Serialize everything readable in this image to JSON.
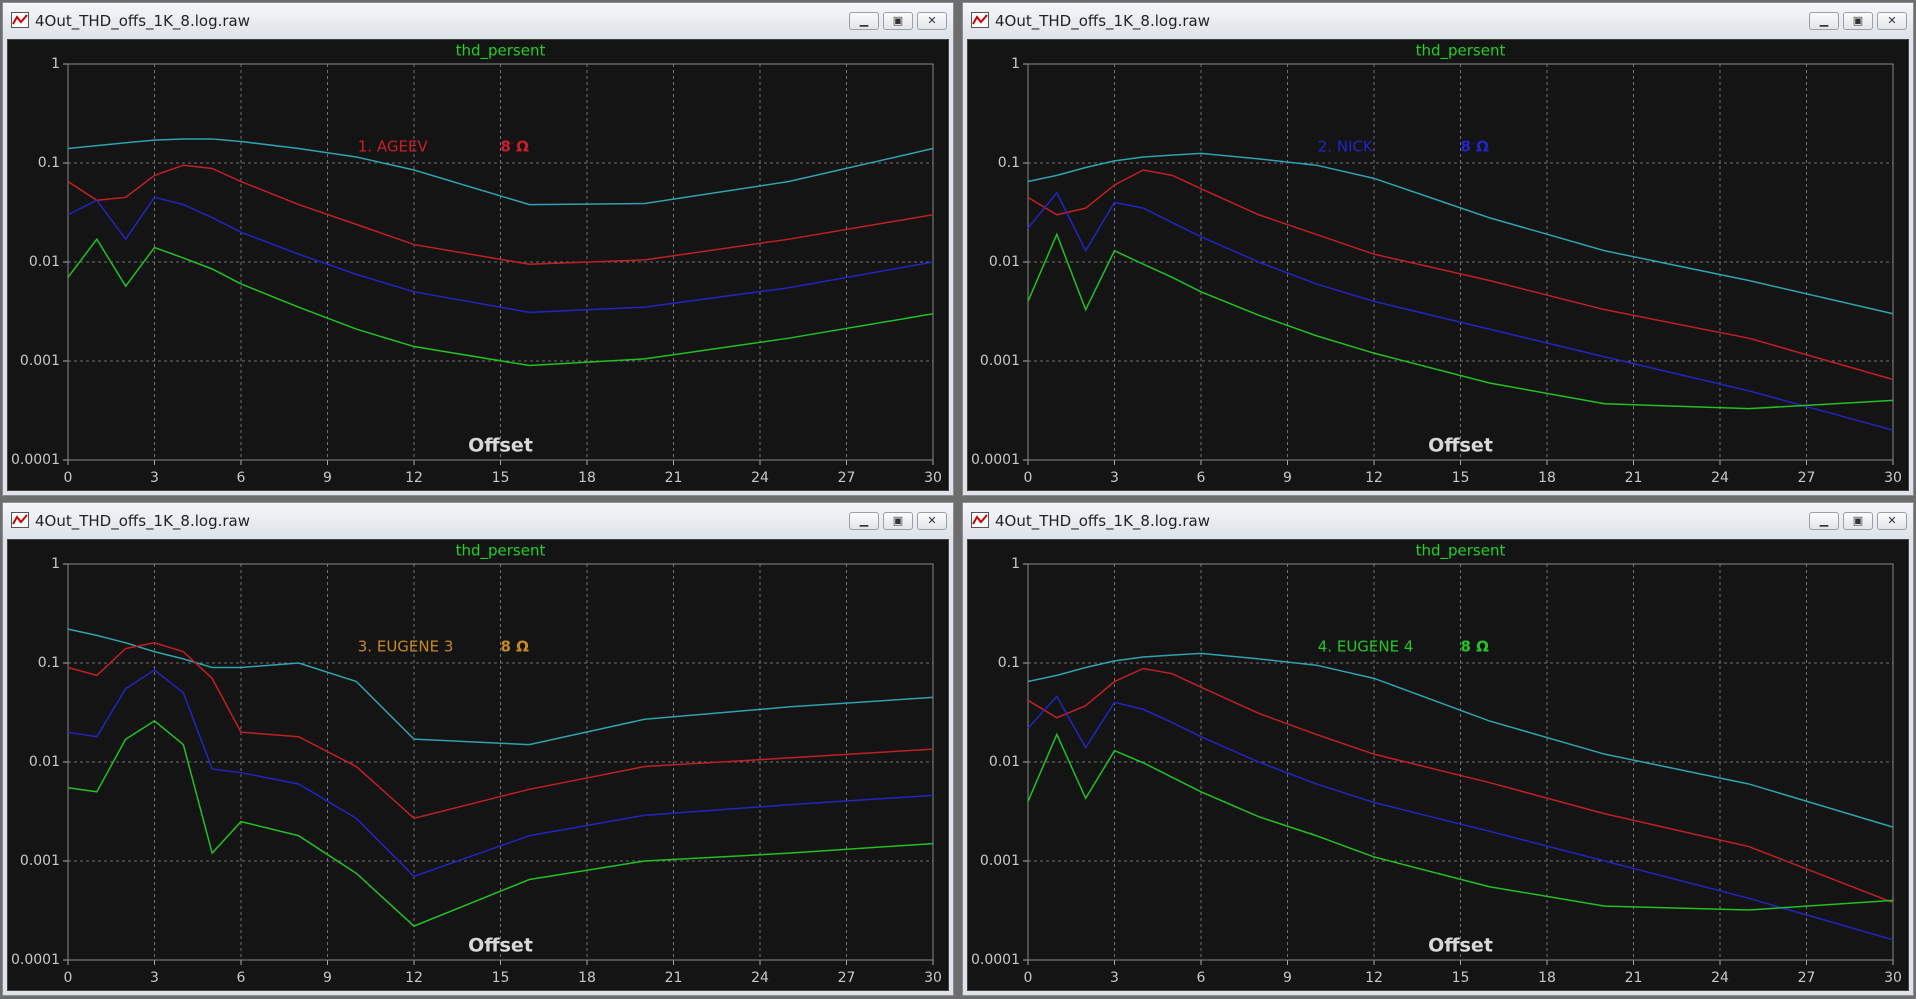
{
  "chart_data": [
    {
      "type": "line",
      "window_title": "4Out_THD_offs_1K_8.log.raw",
      "title": "thd_persent",
      "xlabel": "Offset",
      "annotation": "1. AGEEV",
      "annotation_unit": "8 Ω",
      "annotation_color": "#c8202a",
      "x": [
        0,
        1,
        2,
        3,
        4,
        5,
        6,
        8,
        10,
        12,
        16,
        20,
        25,
        30
      ],
      "xlim": [
        0,
        30
      ],
      "xticks": [
        0,
        3,
        6,
        9,
        12,
        15,
        18,
        21,
        24,
        27,
        30
      ],
      "ylim": [
        0.0001,
        1
      ],
      "yticks": [
        0.0001,
        0.001,
        0.01,
        0.1,
        1
      ],
      "log_y": true,
      "grid": true,
      "series": [
        {
          "color": "#2ea3ad",
          "values": [
            0.14,
            0.15,
            0.16,
            0.17,
            0.175,
            0.175,
            0.165,
            0.14,
            0.115,
            0.085,
            0.038,
            0.039,
            0.065,
            0.14
          ]
        },
        {
          "color": "#c02024",
          "values": [
            0.065,
            0.042,
            0.045,
            0.075,
            0.095,
            0.088,
            0.065,
            0.038,
            0.024,
            0.015,
            0.0095,
            0.0105,
            0.017,
            0.03
          ]
        },
        {
          "color": "#2424c0",
          "values": [
            0.03,
            0.042,
            0.017,
            0.045,
            0.038,
            0.028,
            0.02,
            0.012,
            0.0075,
            0.005,
            0.0031,
            0.0035,
            0.0055,
            0.01
          ]
        },
        {
          "color": "#22c022",
          "values": [
            0.007,
            0.017,
            0.0057,
            0.014,
            0.011,
            0.0085,
            0.006,
            0.0035,
            0.0021,
            0.0014,
            0.0009,
            0.00105,
            0.0017,
            0.003
          ]
        }
      ]
    },
    {
      "type": "line",
      "window_title": "4Out_THD_offs_1K_8.log.raw",
      "title": "thd_persent",
      "xlabel": "Offset",
      "annotation": "2. NICK",
      "annotation_unit": "8 Ω",
      "annotation_color": "#2424c8",
      "x": [
        0,
        1,
        2,
        3,
        4,
        5,
        6,
        8,
        10,
        12,
        16,
        20,
        25,
        30
      ],
      "xlim": [
        0,
        30
      ],
      "xticks": [
        0,
        3,
        6,
        9,
        12,
        15,
        18,
        21,
        24,
        27,
        30
      ],
      "ylim": [
        0.0001,
        1
      ],
      "yticks": [
        0.0001,
        0.001,
        0.01,
        0.1,
        1
      ],
      "log_y": true,
      "grid": true,
      "series": [
        {
          "color": "#2ea3ad",
          "values": [
            0.065,
            0.075,
            0.09,
            0.105,
            0.115,
            0.12,
            0.125,
            0.11,
            0.095,
            0.07,
            0.028,
            0.013,
            0.0065,
            0.003
          ]
        },
        {
          "color": "#c02024",
          "values": [
            0.045,
            0.03,
            0.035,
            0.06,
            0.085,
            0.075,
            0.055,
            0.03,
            0.019,
            0.012,
            0.0065,
            0.0033,
            0.0017,
            0.00065
          ]
        },
        {
          "color": "#2424c0",
          "values": [
            0.022,
            0.05,
            0.013,
            0.04,
            0.035,
            0.025,
            0.018,
            0.01,
            0.006,
            0.004,
            0.0021,
            0.0011,
            0.0005,
            0.0002
          ]
        },
        {
          "color": "#22c022",
          "values": [
            0.004,
            0.019,
            0.0033,
            0.013,
            0.0095,
            0.007,
            0.005,
            0.0029,
            0.0018,
            0.0012,
            0.0006,
            0.00037,
            0.00033,
            0.0004
          ]
        }
      ]
    },
    {
      "type": "line",
      "window_title": "4Out_THD_offs_1K_8.log.raw",
      "title": "thd_persent",
      "xlabel": "Offset",
      "annotation": "3. EUGENE 3",
      "annotation_unit": "8 Ω",
      "annotation_color": "#c88a1e",
      "x": [
        0,
        1,
        2,
        3,
        4,
        5,
        6,
        8,
        10,
        12,
        16,
        20,
        25,
        30
      ],
      "xlim": [
        0,
        30
      ],
      "xticks": [
        0,
        3,
        6,
        9,
        12,
        15,
        18,
        21,
        24,
        27,
        30
      ],
      "ylim": [
        0.0001,
        1
      ],
      "yticks": [
        0.0001,
        0.001,
        0.01,
        0.1,
        1
      ],
      "log_y": true,
      "grid": true,
      "series": [
        {
          "color": "#2ea3ad",
          "values": [
            0.22,
            0.19,
            0.16,
            0.13,
            0.11,
            0.09,
            0.09,
            0.1,
            0.065,
            0.017,
            0.015,
            0.027,
            0.036,
            0.045
          ]
        },
        {
          "color": "#c02024",
          "values": [
            0.09,
            0.075,
            0.14,
            0.16,
            0.13,
            0.07,
            0.02,
            0.018,
            0.009,
            0.0027,
            0.0053,
            0.009,
            0.011,
            0.0135
          ]
        },
        {
          "color": "#2424c0",
          "values": [
            0.02,
            0.018,
            0.055,
            0.085,
            0.05,
            0.0085,
            0.0078,
            0.006,
            0.0027,
            0.0007,
            0.0018,
            0.0029,
            0.0037,
            0.0046
          ]
        },
        {
          "color": "#22c022",
          "values": [
            0.0055,
            0.005,
            0.017,
            0.026,
            0.015,
            0.0012,
            0.0025,
            0.0018,
            0.00075,
            0.00022,
            0.00065,
            0.001,
            0.0012,
            0.0015
          ]
        }
      ]
    },
    {
      "type": "line",
      "window_title": "4Out_THD_offs_1K_8.log.raw",
      "title": "thd_persent",
      "xlabel": "Offset",
      "annotation": "4. EUGENE 4",
      "annotation_unit": "8 Ω",
      "annotation_color": "#22c822",
      "x": [
        0,
        1,
        2,
        3,
        4,
        5,
        6,
        8,
        10,
        12,
        16,
        20,
        25,
        30
      ],
      "xlim": [
        0,
        30
      ],
      "xticks": [
        0,
        3,
        6,
        9,
        12,
        15,
        18,
        21,
        24,
        27,
        30
      ],
      "ylim": [
        0.0001,
        1
      ],
      "yticks": [
        0.0001,
        0.001,
        0.01,
        0.1,
        1
      ],
      "log_y": true,
      "grid": true,
      "series": [
        {
          "color": "#2ea3ad",
          "values": [
            0.065,
            0.075,
            0.09,
            0.105,
            0.115,
            0.12,
            0.125,
            0.11,
            0.095,
            0.07,
            0.026,
            0.012,
            0.006,
            0.0022
          ]
        },
        {
          "color": "#c02024",
          "values": [
            0.042,
            0.028,
            0.037,
            0.065,
            0.088,
            0.078,
            0.057,
            0.031,
            0.019,
            0.012,
            0.0062,
            0.003,
            0.0014,
            0.00038
          ]
        },
        {
          "color": "#2424c0",
          "values": [
            0.022,
            0.046,
            0.014,
            0.04,
            0.034,
            0.025,
            0.018,
            0.01,
            0.006,
            0.0039,
            0.002,
            0.001,
            0.00042,
            0.00016
          ]
        },
        {
          "color": "#22c022",
          "values": [
            0.004,
            0.019,
            0.0043,
            0.013,
            0.0098,
            0.007,
            0.005,
            0.0028,
            0.0018,
            0.0011,
            0.00055,
            0.00035,
            0.00032,
            0.0004
          ]
        }
      ]
    }
  ]
}
